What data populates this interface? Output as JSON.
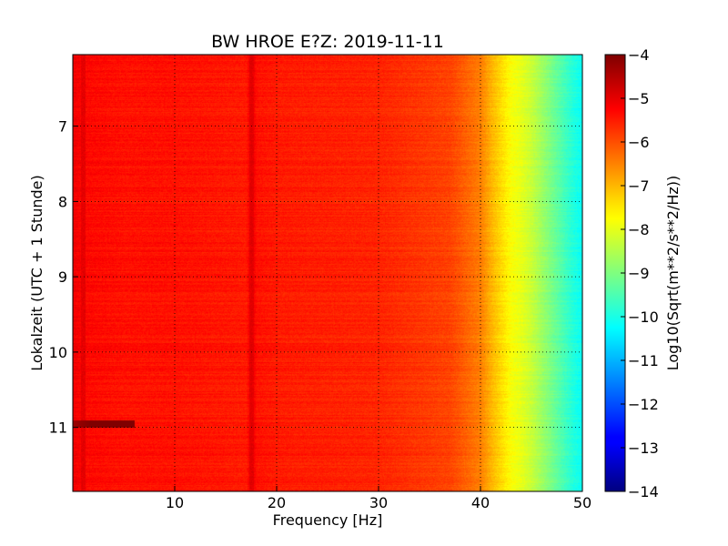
{
  "chart_data": {
    "type": "heatmap",
    "title": "BW HROE E?Z: 2019-11-11",
    "xlabel": "Frequency [Hz]",
    "ylabel": "Lokalzeit (UTC + 1 Stunde)",
    "xlim": [
      0,
      50
    ],
    "ylim": [
      6.05,
      11.85
    ],
    "y_inverted": true,
    "x_ticks": [
      10,
      20,
      30,
      40,
      50
    ],
    "y_ticks": [
      7,
      8,
      9,
      10,
      11
    ],
    "grid": true,
    "colormap": "jet",
    "colorbar": {
      "label": "Log10(Sqrt(m**2/s**2/Hz))",
      "range": [
        -14,
        -4
      ],
      "ticks": [
        -4,
        -5,
        -6,
        -7,
        -8,
        -9,
        -10,
        -11,
        -12,
        -13,
        -14
      ]
    },
    "spectrum_profile": {
      "frequency_hz": [
        0,
        1,
        5,
        10,
        17,
        17.5,
        18,
        20,
        30,
        37,
        38,
        40,
        41,
        42,
        43,
        44,
        45,
        46,
        47,
        48,
        49,
        50
      ],
      "log10_amplitude": [
        -5.1,
        -5.3,
        -5.4,
        -5.4,
        -5.5,
        -5.0,
        -5.4,
        -5.5,
        -5.6,
        -5.9,
        -6.1,
        -6.5,
        -7.0,
        -7.4,
        -7.8,
        -8.0,
        -8.3,
        -8.7,
        -9.1,
        -9.5,
        -9.9,
        -10.2
      ]
    },
    "features": [
      {
        "kind": "horizontal-band",
        "time": 10.95,
        "freq_range": [
          0,
          6
        ],
        "log10_amplitude": -4.3
      },
      {
        "kind": "vertical-line",
        "frequency_hz": 17.5,
        "log10_amplitude": -5.0
      },
      {
        "kind": "vertical-line",
        "frequency_hz": 1.0,
        "log10_amplitude": -5.0
      }
    ]
  }
}
